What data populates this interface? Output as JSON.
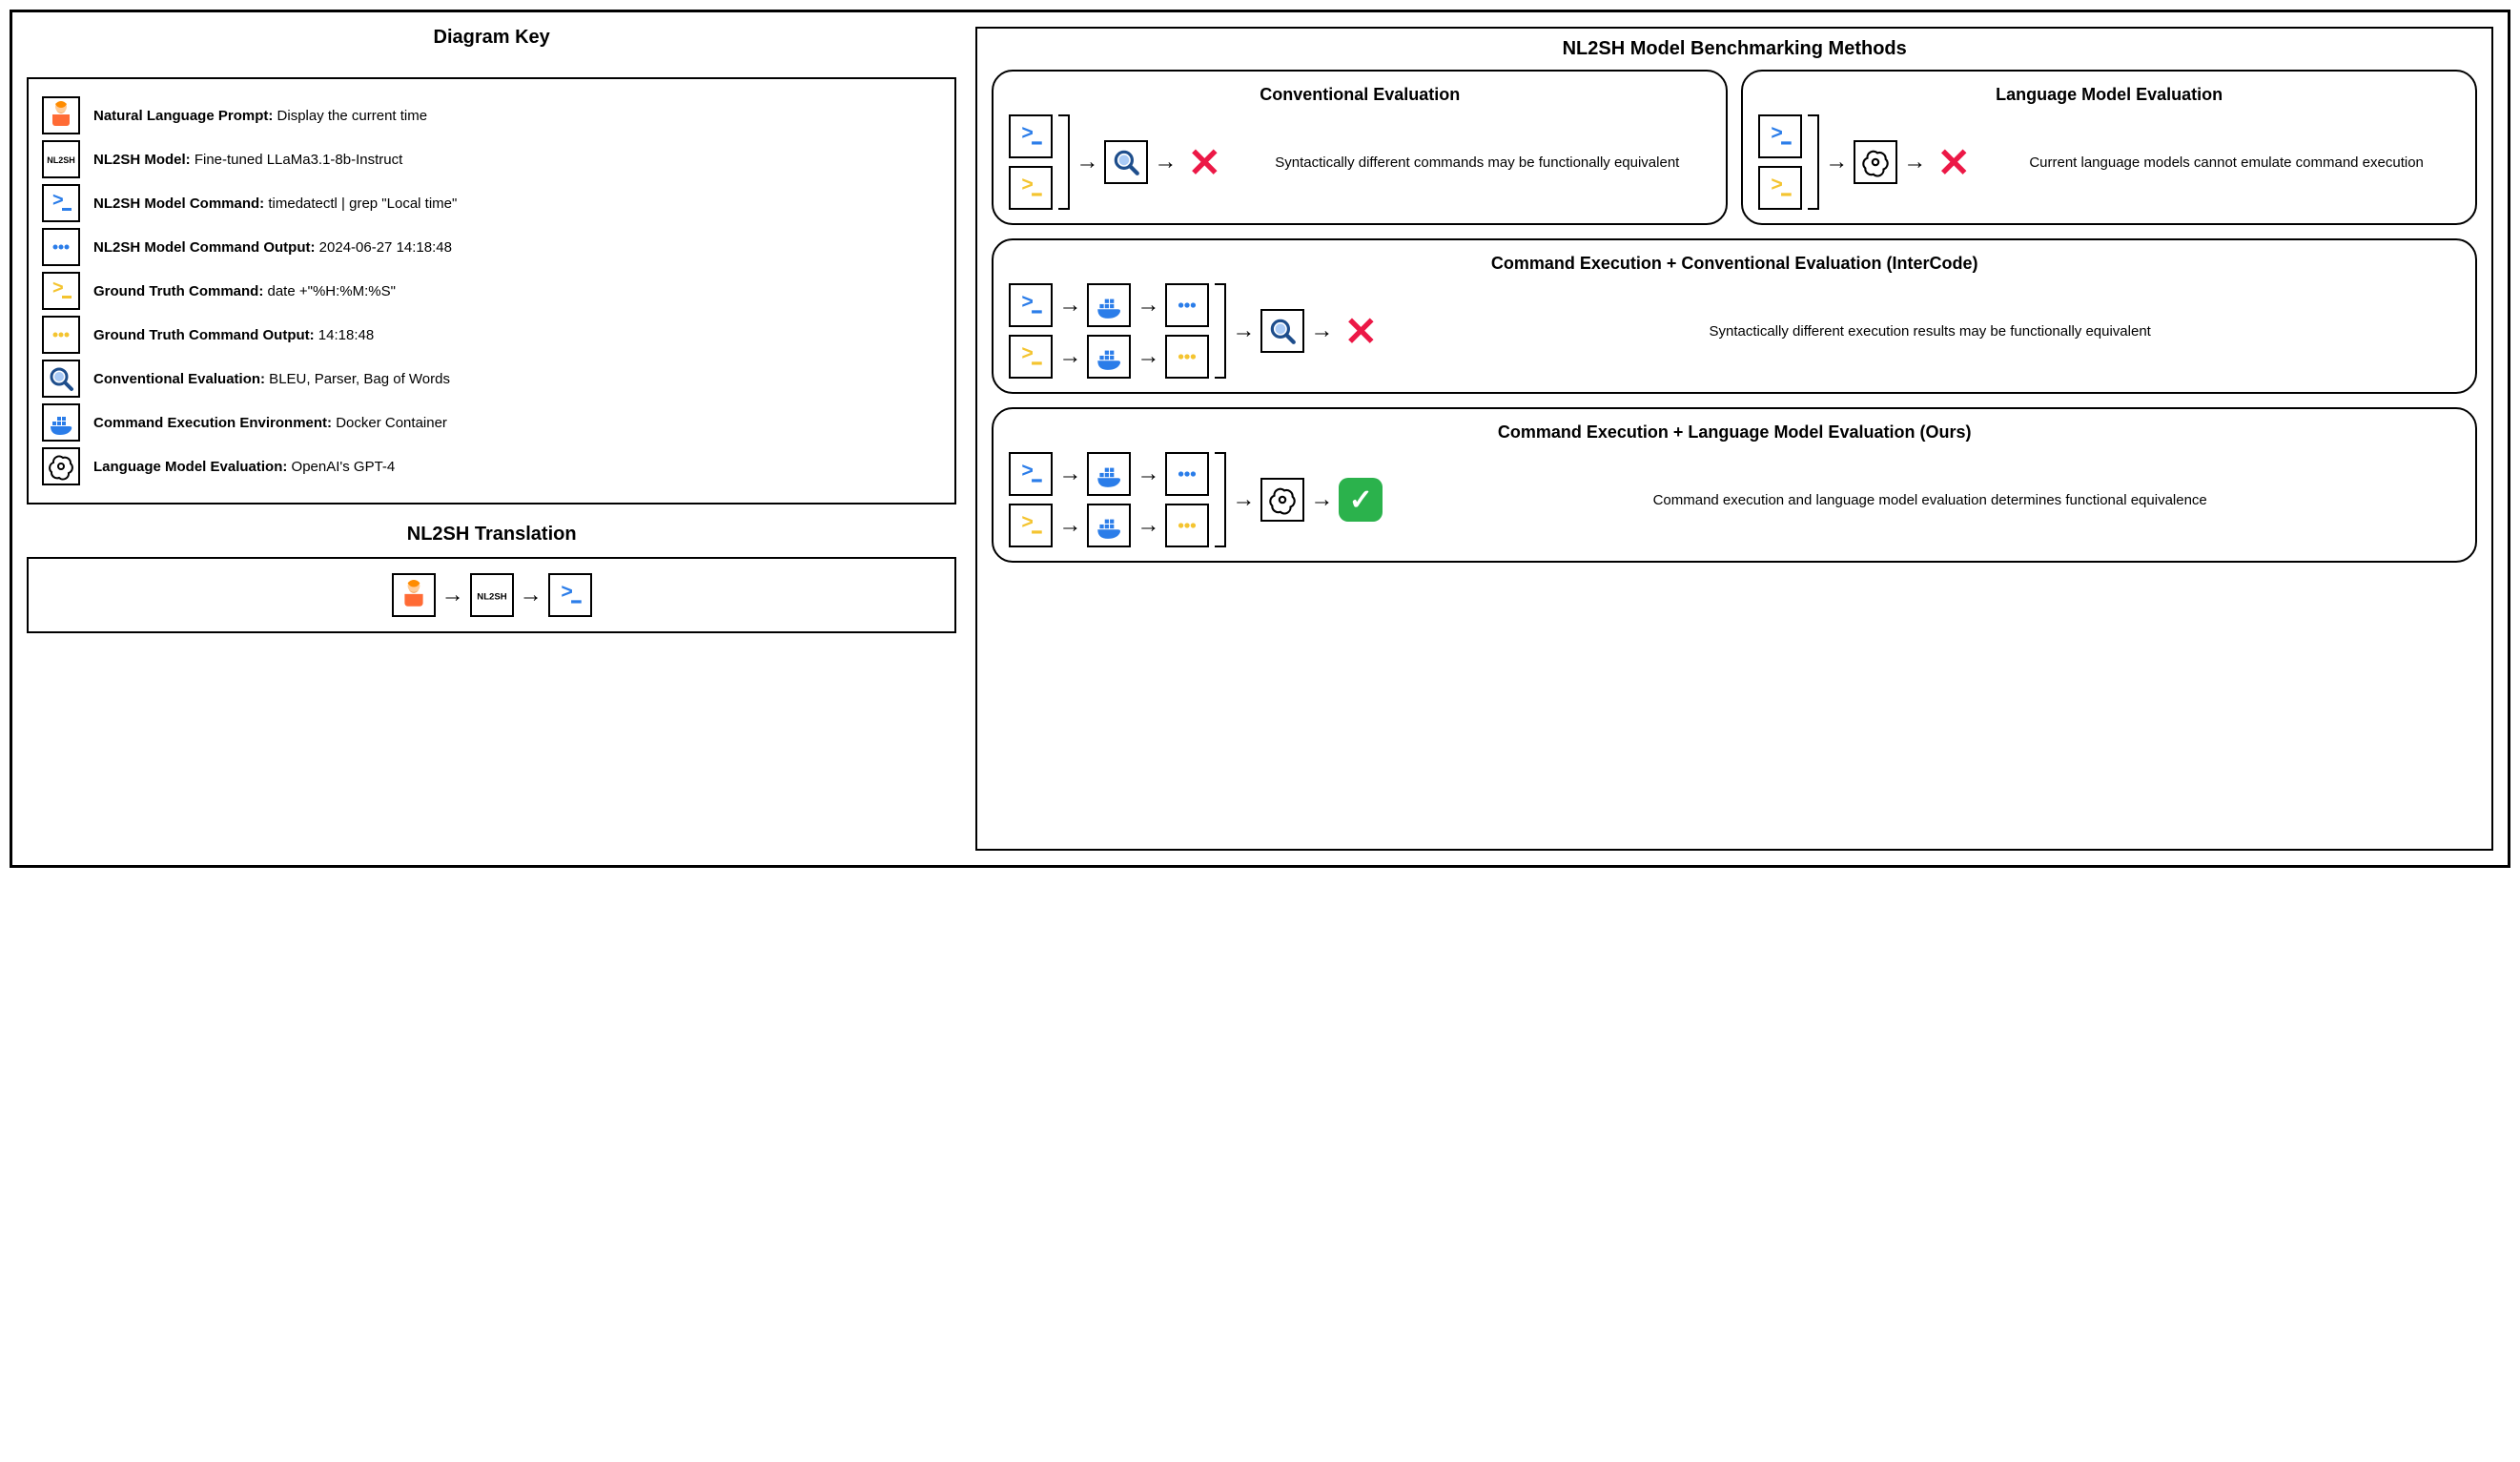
{
  "colors": {
    "blue": "#2b7de9",
    "yellow": "#f4c430",
    "red": "#ec1846",
    "green": "#2bb24c",
    "darkblue": "#1e4e8c"
  },
  "key": {
    "title": "Diagram Key",
    "items": [
      {
        "icon": "person",
        "label": "Natural Language Prompt:",
        "value": "Display the current time"
      },
      {
        "icon": "nl2sh",
        "label": "NL2SH Model:",
        "value": "Fine-tuned LLaMa3.1-8b-Instruct"
      },
      {
        "icon": "prompt-blue",
        "label": "NL2SH Model Command:",
        "value": "timedatectl | grep \"Local time\""
      },
      {
        "icon": "dots-blue",
        "label": "NL2SH Model Command Output:",
        "value": "2024-06-27 14:18:48"
      },
      {
        "icon": "prompt-yellow",
        "label": "Ground Truth Command:",
        "value": "date +\"%H:%M:%S\""
      },
      {
        "icon": "dots-yellow",
        "label": "Ground Truth Command Output:",
        "value": "14:18:48"
      },
      {
        "icon": "magnifier",
        "label": "Conventional Evaluation:",
        "value": "BLEU, Parser, Bag of Words"
      },
      {
        "icon": "docker",
        "label": "Command Execution Environment:",
        "value": "Docker Container"
      },
      {
        "icon": "openai",
        "label": "Language Model Evaluation:",
        "value": "OpenAI's GPT-4"
      }
    ]
  },
  "translation": {
    "title": "NL2SH Translation"
  },
  "benchmarking": {
    "title": "NL2SH Model Benchmarking Methods",
    "conventional": {
      "title": "Conventional Evaluation",
      "desc": "Syntactically different commands may be functionally equivalent"
    },
    "lm": {
      "title": "Language Model Evaluation",
      "desc": "Current language models cannot emulate command execution"
    },
    "intercode": {
      "title": "Command Execution + Conventional Evaluation (InterCode)",
      "desc": "Syntactically different execution results may be functionally equivalent"
    },
    "ours": {
      "title": "Command Execution + Language Model Evaluation (Ours)",
      "desc": "Command execution and language model evaluation determines functional equivalence"
    }
  }
}
